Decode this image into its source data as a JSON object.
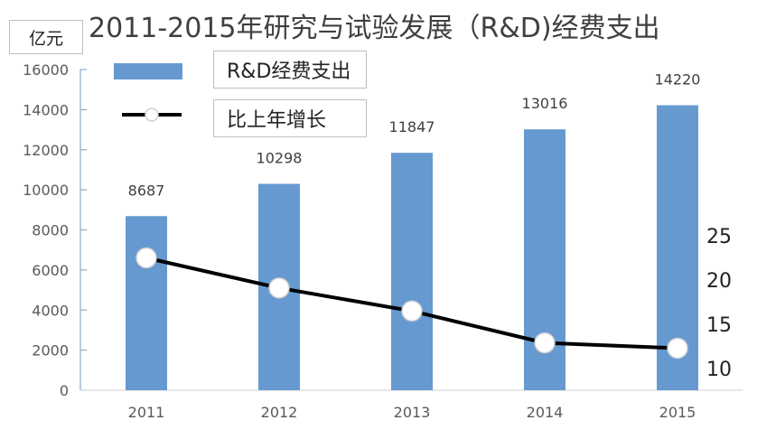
{
  "chart_data": {
    "type": "bar",
    "title": "2011-2015年研究与试验发展（R&D)经费支出",
    "ylabel": "亿元",
    "categories": [
      "2011",
      "2012",
      "2013",
      "2014",
      "2015"
    ],
    "series": [
      {
        "name": "R&D经费支出",
        "type": "bar",
        "axis": "left",
        "values": [
          8687,
          10298,
          11847,
          13016,
          14220
        ],
        "labels": [
          "8687",
          "10298",
          "11847",
          "13016",
          "14220"
        ],
        "color": "#6699d0"
      },
      {
        "name": "比上年增长",
        "type": "line",
        "axis": "right",
        "values": [
          22.5,
          19.1,
          16.5,
          12.9,
          12.3
        ],
        "color": "#000000",
        "marker": "white-circle"
      }
    ],
    "yleft": {
      "ylim": [
        0,
        16000
      ],
      "ticks": [
        "0",
        "2000",
        "4000",
        "6000",
        "8000",
        "10000",
        "12000",
        "14000",
        "16000"
      ]
    },
    "yright": {
      "ticks": [
        "10",
        "15",
        "20",
        "25"
      ]
    },
    "grid": false,
    "legend_placement": "top-left"
  }
}
